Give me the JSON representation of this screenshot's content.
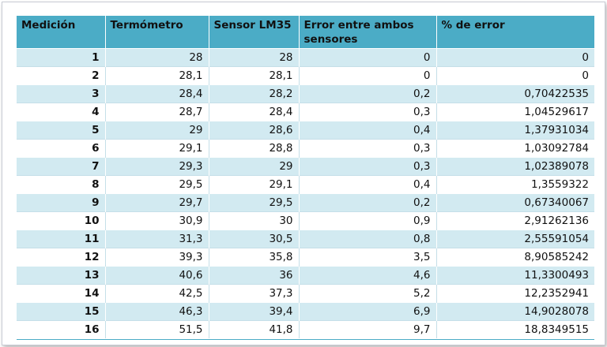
{
  "table": {
    "headers": [
      "Medición",
      "Termómetro",
      "Sensor LM35",
      "Error entre ambos sensores",
      "% de error"
    ],
    "rows": [
      [
        "1",
        "28",
        "28",
        "0",
        "0"
      ],
      [
        "2",
        "28,1",
        "28,1",
        "0",
        "0"
      ],
      [
        "3",
        "28,4",
        "28,2",
        "0,2",
        "0,70422535"
      ],
      [
        "4",
        "28,7",
        "28,4",
        "0,3",
        "1,04529617"
      ],
      [
        "5",
        "29",
        "28,6",
        "0,4",
        "1,37931034"
      ],
      [
        "6",
        "29,1",
        "28,8",
        "0,3",
        "1,03092784"
      ],
      [
        "7",
        "29,3",
        "29",
        "0,3",
        "1,02389078"
      ],
      [
        "8",
        "29,5",
        "29,1",
        "0,4",
        "1,3559322"
      ],
      [
        "9",
        "29,7",
        "29,5",
        "0,2",
        "0,67340067"
      ],
      [
        "10",
        "30,9",
        "30",
        "0,9",
        "2,91262136"
      ],
      [
        "11",
        "31,3",
        "30,5",
        "0,8",
        "2,55591054"
      ],
      [
        "12",
        "39,3",
        "35,8",
        "3,5",
        "8,90585242"
      ],
      [
        "13",
        "40,6",
        "36",
        "4,6",
        "11,3300493"
      ],
      [
        "14",
        "42,5",
        "37,3",
        "5,2",
        "12,2352941"
      ],
      [
        "15",
        "46,3",
        "39,4",
        "6,9",
        "14,9028078"
      ],
      [
        "16",
        "51,5",
        "41,8",
        "9,7",
        "18,8349515"
      ]
    ]
  },
  "colors": {
    "header_bg": "#4bacc6",
    "band_bg": "#d2eaf1",
    "plain_bg": "#ffffff"
  }
}
